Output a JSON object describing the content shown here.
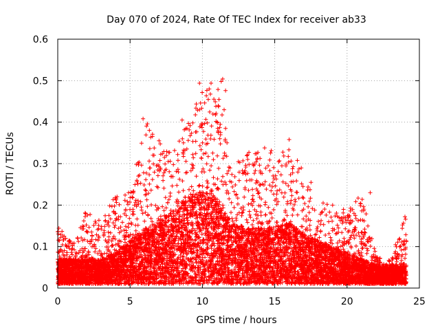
{
  "chart_data": {
    "type": "scatter",
    "title": "Day 070 of 2024, Rate Of TEC Index for receiver ab33",
    "xlabel": "GPS time / hours",
    "ylabel": "ROTI / TECUs",
    "xlim": [
      0,
      25
    ],
    "ylim": [
      0,
      0.6
    ],
    "xticks": [
      0,
      5,
      10,
      15,
      20,
      25
    ],
    "yticks": [
      0,
      0.1,
      0.2,
      0.3,
      0.4,
      0.5,
      0.6
    ],
    "xtick_labels": [
      "0",
      "5",
      "10",
      "15",
      "20",
      "25"
    ],
    "ytick_labels": [
      "0",
      "0.1",
      "0.2",
      "0.3",
      "0.4",
      "0.5",
      "0.6"
    ],
    "grid": true,
    "marker": "+",
    "color": "#ff0000",
    "profile": {
      "x": [
        0,
        1,
        2,
        3,
        4,
        5,
        6,
        7,
        8,
        9,
        10,
        11,
        12,
        13,
        14,
        15,
        16,
        17,
        18,
        19,
        20,
        21,
        22,
        23,
        24
      ],
      "max_roti": [
        0.15,
        0.11,
        0.19,
        0.16,
        0.23,
        0.23,
        0.41,
        0.35,
        0.33,
        0.41,
        0.49,
        0.5,
        0.3,
        0.33,
        0.34,
        0.33,
        0.36,
        0.31,
        0.21,
        0.2,
        0.19,
        0.23,
        0.08,
        0.07,
        0.17
      ],
      "typical_roti": [
        0.04,
        0.04,
        0.04,
        0.04,
        0.05,
        0.07,
        0.09,
        0.1,
        0.12,
        0.14,
        0.15,
        0.14,
        0.1,
        0.09,
        0.09,
        0.09,
        0.1,
        0.08,
        0.07,
        0.06,
        0.05,
        0.04,
        0.03,
        0.03,
        0.03
      ]
    },
    "highlights": [
      {
        "x": 11.4,
        "y": 0.504
      },
      {
        "x": 11.3,
        "y": 0.498
      },
      {
        "x": 9.8,
        "y": 0.494
      },
      {
        "x": 10.6,
        "y": 0.494
      },
      {
        "x": 11.6,
        "y": 0.476
      },
      {
        "x": 9.8,
        "y": 0.43
      },
      {
        "x": 11.5,
        "y": 0.43
      },
      {
        "x": 5.9,
        "y": 0.408
      },
      {
        "x": 8.6,
        "y": 0.405
      },
      {
        "x": 6.2,
        "y": 0.396
      },
      {
        "x": 11.6,
        "y": 0.385
      },
      {
        "x": 7.0,
        "y": 0.355
      },
      {
        "x": 11.7,
        "y": 0.35
      },
      {
        "x": 16.0,
        "y": 0.358
      },
      {
        "x": 14.3,
        "y": 0.338
      },
      {
        "x": 13.0,
        "y": 0.296
      },
      {
        "x": 21.6,
        "y": 0.23
      },
      {
        "x": 24.0,
        "y": 0.172
      }
    ]
  }
}
